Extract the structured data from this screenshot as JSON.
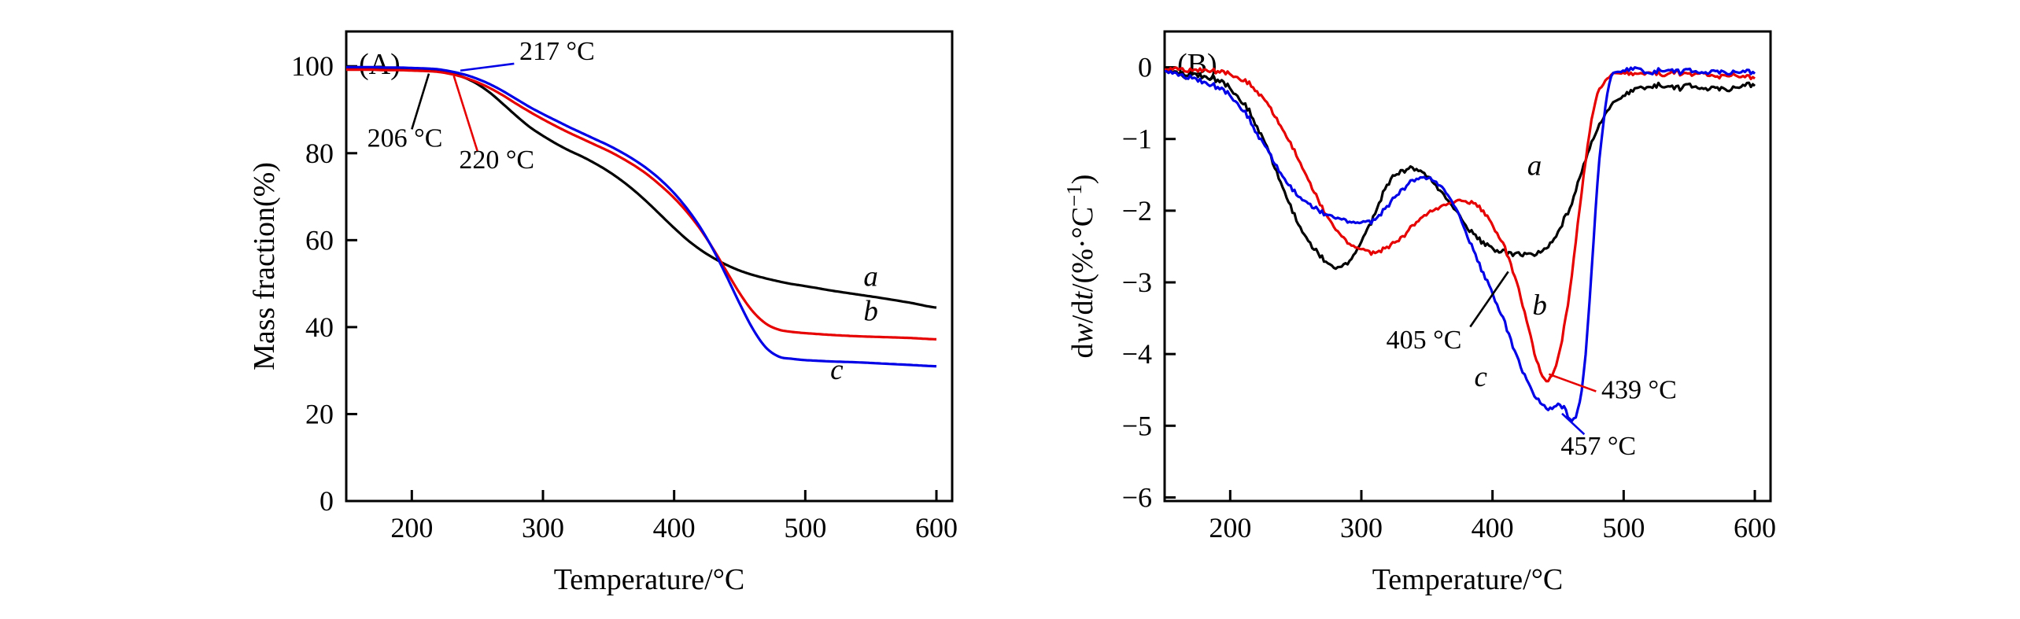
{
  "figure": {
    "background": "#ffffff"
  },
  "chart_data": [
    {
      "type": "line",
      "panel_label": "(A)",
      "xlabel": "Temperature/°C",
      "ylabel_runs": [
        {
          "t": "Mass fraction(%)"
        }
      ],
      "xlim": [
        150,
        612
      ],
      "ylim": [
        0,
        108
      ],
      "xticks": [
        200,
        300,
        400,
        500,
        600
      ],
      "xtick_labels": [
        "200",
        "300",
        "400",
        "500",
        "600"
      ],
      "yticks": [
        0,
        20,
        40,
        60,
        80,
        100
      ],
      "ytick_labels": [
        "0",
        "20",
        "40",
        "60",
        "80",
        "100"
      ],
      "grid": false,
      "legend": "curve labels a, b, c drawn beside curves",
      "series": [
        {
          "name": "a",
          "color": "#000000",
          "noise": 0,
          "x": [
            150,
            160,
            170,
            180,
            190,
            200,
            210,
            220,
            230,
            240,
            250,
            260,
            270,
            280,
            290,
            300,
            310,
            320,
            330,
            340,
            350,
            360,
            370,
            380,
            390,
            400,
            410,
            420,
            430,
            440,
            450,
            460,
            470,
            480,
            490,
            500,
            520,
            540,
            560,
            580,
            600
          ],
          "y": [
            99.4,
            99.4,
            99.4,
            99.3,
            99.3,
            99.2,
            99.1,
            98.9,
            98.4,
            97.4,
            95.9,
            93.8,
            91.2,
            88.5,
            86.0,
            84.0,
            82.2,
            80.6,
            79.2,
            77.6,
            75.8,
            73.7,
            71.3,
            68.6,
            65.7,
            62.8,
            60.1,
            57.8,
            55.9,
            54.3,
            53.0,
            52.0,
            51.2,
            50.5,
            49.9,
            49.4,
            48.4,
            47.5,
            46.6,
            45.6,
            44.5
          ]
        },
        {
          "name": "b",
          "color": "#e60000",
          "noise": 0,
          "x": [
            150,
            160,
            170,
            180,
            190,
            200,
            210,
            220,
            230,
            240,
            250,
            260,
            270,
            280,
            290,
            300,
            310,
            320,
            330,
            340,
            350,
            360,
            370,
            380,
            390,
            400,
            410,
            420,
            430,
            440,
            450,
            460,
            470,
            480,
            490,
            500,
            520,
            540,
            560,
            580,
            600
          ],
          "y": [
            99.2,
            99.2,
            99.2,
            99.1,
            99.1,
            99.0,
            98.9,
            98.7,
            98.2,
            97.4,
            96.3,
            94.9,
            93.2,
            91.3,
            89.5,
            87.8,
            86.2,
            84.7,
            83.3,
            81.9,
            80.5,
            78.9,
            77.1,
            75.0,
            72.5,
            69.7,
            66.4,
            62.5,
            57.9,
            52.8,
            47.8,
            43.6,
            40.8,
            39.4,
            38.9,
            38.6,
            38.2,
            37.9,
            37.7,
            37.5,
            37.2
          ]
        },
        {
          "name": "c",
          "color": "#0000e6",
          "noise": 0,
          "x": [
            150,
            160,
            170,
            180,
            190,
            200,
            210,
            220,
            230,
            240,
            250,
            260,
            270,
            280,
            290,
            300,
            310,
            320,
            330,
            340,
            350,
            360,
            370,
            380,
            390,
            400,
            410,
            420,
            430,
            440,
            450,
            460,
            470,
            480,
            490,
            500,
            520,
            540,
            560,
            580,
            600
          ],
          "y": [
            99.8,
            99.8,
            99.8,
            99.7,
            99.7,
            99.6,
            99.5,
            99.3,
            98.8,
            98.1,
            97.1,
            95.8,
            94.2,
            92.4,
            90.6,
            89.0,
            87.5,
            86.0,
            84.6,
            83.2,
            81.8,
            80.2,
            78.4,
            76.3,
            73.8,
            70.8,
            67.2,
            62.9,
            57.7,
            51.7,
            45.4,
            39.6,
            35.3,
            33.2,
            32.7,
            32.4,
            32.1,
            31.9,
            31.6,
            31.3,
            31.0
          ]
        }
      ],
      "curve_labels": [
        {
          "text": "a",
          "x": 550,
          "y": 49.5
        },
        {
          "text": "b",
          "x": 550,
          "y": 41.5
        },
        {
          "text": "c",
          "x": 524,
          "y": 28.0
        }
      ],
      "annotations": [
        {
          "text": "217 °C",
          "text_x": 282,
          "text_y": 101.5,
          "anchor": "start",
          "line_color": "#0000e6",
          "line": {
            "x1": 278,
            "y1": 100.6,
            "x2": 237,
            "y2": 99.0
          }
        },
        {
          "text": "206 °C",
          "text_x": 166,
          "text_y": 81.5,
          "anchor": "start",
          "line_color": "#000000",
          "line": {
            "x1": 200,
            "y1": 85.5,
            "x2": 213,
            "y2": 98.3
          }
        },
        {
          "text": "220 °C",
          "text_x": 236,
          "text_y": 76.5,
          "anchor": "start",
          "line_color": "#e60000",
          "line": {
            "x1": 250,
            "y1": 80.5,
            "x2": 232,
            "y2": 97.8
          }
        }
      ]
    },
    {
      "type": "line",
      "panel_label": "(B)",
      "xlabel": "Temperature/°C",
      "ylabel_runs": [
        {
          "t": "d"
        },
        {
          "t": "w",
          "i": true
        },
        {
          "t": "/d"
        },
        {
          "t": "t",
          "i": true
        },
        {
          "t": "/(%·°C"
        },
        {
          "t": "−1",
          "sup": true
        },
        {
          "t": ")"
        }
      ],
      "xlim": [
        150,
        612
      ],
      "ylim": [
        -6.05,
        0.5
      ],
      "xticks": [
        200,
        300,
        400,
        500,
        600
      ],
      "xtick_labels": [
        "200",
        "300",
        "400",
        "500",
        "600"
      ],
      "yticks": [
        0,
        -1,
        -2,
        -3,
        -4,
        -5,
        -6
      ],
      "ytick_labels": [
        "0",
        "−1",
        "−2",
        "−3",
        "−4",
        "−5",
        "−6"
      ],
      "grid": false,
      "legend": "curve labels a, b, c drawn beside curves",
      "series": [
        {
          "name": "a",
          "color": "#000000",
          "noise": 0.05,
          "x": [
            150,
            160,
            170,
            180,
            190,
            200,
            210,
            220,
            230,
            240,
            250,
            260,
            270,
            280,
            290,
            300,
            310,
            320,
            330,
            340,
            350,
            360,
            370,
            380,
            390,
            400,
            410,
            420,
            430,
            440,
            450,
            460,
            470,
            480,
            490,
            500,
            510,
            520,
            530,
            540,
            550,
            560,
            570,
            580,
            590,
            600
          ],
          "y": [
            -0.05,
            -0.08,
            -0.1,
            -0.12,
            -0.18,
            -0.3,
            -0.5,
            -0.8,
            -1.2,
            -1.65,
            -2.1,
            -2.45,
            -2.65,
            -2.8,
            -2.72,
            -2.45,
            -2.05,
            -1.65,
            -1.45,
            -1.42,
            -1.52,
            -1.72,
            -1.95,
            -2.2,
            -2.4,
            -2.52,
            -2.58,
            -2.6,
            -2.6,
            -2.52,
            -2.3,
            -1.9,
            -1.35,
            -0.85,
            -0.55,
            -0.4,
            -0.3,
            -0.27,
            -0.25,
            -0.3,
            -0.25,
            -0.3,
            -0.27,
            -0.3,
            -0.25,
            -0.25
          ]
        },
        {
          "name": "b",
          "color": "#e60000",
          "noise": 0.04,
          "x": [
            150,
            160,
            170,
            180,
            190,
            200,
            210,
            220,
            230,
            240,
            250,
            260,
            270,
            280,
            290,
            300,
            310,
            320,
            330,
            340,
            350,
            360,
            370,
            380,
            390,
            400,
            410,
            420,
            430,
            435,
            440,
            445,
            450,
            455,
            460,
            465,
            470,
            475,
            480,
            490,
            500,
            510,
            520,
            530,
            540,
            550,
            560,
            570,
            580,
            590,
            600
          ],
          "y": [
            -0.03,
            -0.02,
            -0.05,
            -0.03,
            -0.06,
            -0.1,
            -0.18,
            -0.32,
            -0.55,
            -0.85,
            -1.2,
            -1.6,
            -1.95,
            -2.25,
            -2.45,
            -2.55,
            -2.58,
            -2.52,
            -2.38,
            -2.2,
            -2.05,
            -1.95,
            -1.88,
            -1.86,
            -1.95,
            -2.2,
            -2.55,
            -3.1,
            -3.8,
            -4.15,
            -4.35,
            -4.3,
            -4.05,
            -3.6,
            -2.95,
            -2.2,
            -1.45,
            -0.8,
            -0.35,
            -0.12,
            -0.08,
            -0.1,
            -0.07,
            -0.1,
            -0.08,
            -0.1,
            -0.08,
            -0.12,
            -0.1,
            -0.12,
            -0.15
          ]
        },
        {
          "name": "c",
          "color": "#0000e6",
          "noise": 0.045,
          "x": [
            150,
            160,
            170,
            180,
            190,
            200,
            210,
            220,
            230,
            240,
            250,
            260,
            270,
            280,
            290,
            300,
            310,
            320,
            330,
            340,
            350,
            360,
            370,
            380,
            390,
            400,
            410,
            420,
            430,
            440,
            445,
            450,
            455,
            460,
            465,
            470,
            475,
            480,
            485,
            490,
            500,
            510,
            520,
            530,
            540,
            550,
            560,
            570,
            580,
            590,
            600
          ],
          "y": [
            -0.05,
            -0.1,
            -0.15,
            -0.2,
            -0.28,
            -0.4,
            -0.6,
            -0.9,
            -1.2,
            -1.5,
            -1.75,
            -1.92,
            -2.02,
            -2.1,
            -2.15,
            -2.18,
            -2.12,
            -1.95,
            -1.72,
            -1.58,
            -1.55,
            -1.65,
            -1.9,
            -2.3,
            -2.75,
            -3.15,
            -3.6,
            -4.1,
            -4.5,
            -4.72,
            -4.75,
            -4.7,
            -4.78,
            -4.9,
            -4.8,
            -4.2,
            -3.0,
            -1.6,
            -0.7,
            -0.15,
            -0.05,
            -0.02,
            -0.08,
            -0.03,
            -0.07,
            -0.04,
            -0.08,
            -0.04,
            -0.07,
            -0.05,
            -0.08
          ]
        }
      ],
      "curve_labels": [
        {
          "text": "a",
          "x": 432,
          "y": -1.5
        },
        {
          "text": "b",
          "x": 436,
          "y": -3.45
        },
        {
          "text": "c",
          "x": 391,
          "y": -4.45
        }
      ],
      "annotations": [
        {
          "text": "405 °C",
          "text_x": 319,
          "text_y": -3.92,
          "anchor": "start",
          "line_color": "#000000",
          "line": {
            "x1": 383,
            "y1": -3.62,
            "x2": 412,
            "y2": -2.85
          }
        },
        {
          "text": "439 °C",
          "text_x": 483,
          "text_y": -4.62,
          "anchor": "start",
          "line_color": "#e60000",
          "line": {
            "x1": 479,
            "y1": -4.52,
            "x2": 443,
            "y2": -4.28
          }
        },
        {
          "text": "457 °C",
          "text_x": 452,
          "text_y": -5.4,
          "anchor": "start",
          "line_color": "#0000e6",
          "line": {
            "x1": 470,
            "y1": -5.12,
            "x2": 453,
            "y2": -4.83
          }
        }
      ]
    }
  ]
}
